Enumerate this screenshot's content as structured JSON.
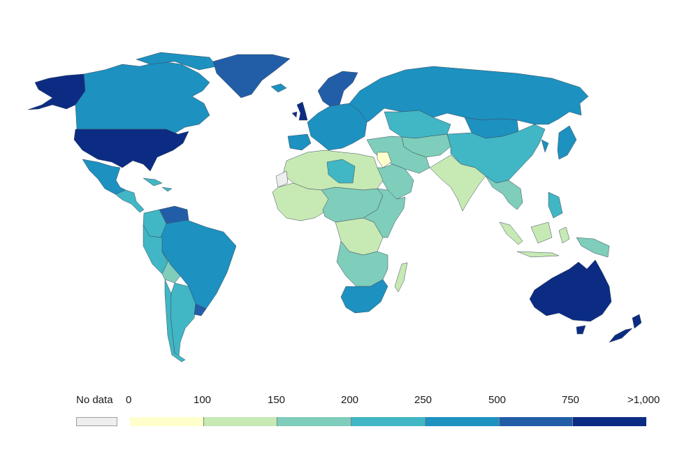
{
  "legend": {
    "no_data_label": "No data",
    "no_data_color": "#eeeeee",
    "ticks": [
      "0",
      "100",
      "150",
      "200",
      "250",
      "500",
      "750",
      ">1,000"
    ],
    "bins": [
      {
        "color": "#ffffcc"
      },
      {
        "color": "#c7e9b4"
      },
      {
        "color": "#7fcdbb"
      },
      {
        "color": "#41b6c4"
      },
      {
        "color": "#1d91c0"
      },
      {
        "color": "#225ea8"
      },
      {
        "color": "#0c2c84"
      }
    ]
  },
  "regions": [
    {
      "name": "alaska",
      "color": "#0c2c84"
    },
    {
      "name": "canada",
      "color": "#1d91c0"
    },
    {
      "name": "greenland",
      "color": "#225ea8"
    },
    {
      "name": "usa",
      "color": "#0c2c84"
    },
    {
      "name": "mexico",
      "color": "#1d91c0"
    },
    {
      "name": "central-america",
      "color": "#41b6c4"
    },
    {
      "name": "caribbean",
      "color": "#41b6c4"
    },
    {
      "name": "venezuela",
      "color": "#225ea8"
    },
    {
      "name": "colombia",
      "color": "#41b6c4"
    },
    {
      "name": "brazil",
      "color": "#1d91c0"
    },
    {
      "name": "peru",
      "color": "#41b6c4"
    },
    {
      "name": "bolivia",
      "color": "#7fcdbb"
    },
    {
      "name": "argentina",
      "color": "#41b6c4"
    },
    {
      "name": "chile",
      "color": "#41b6c4"
    },
    {
      "name": "uruguay",
      "color": "#225ea8"
    },
    {
      "name": "iceland",
      "color": "#1d91c0"
    },
    {
      "name": "scandinavia",
      "color": "#225ea8"
    },
    {
      "name": "uk",
      "color": "#0c2c84"
    },
    {
      "name": "europe",
      "color": "#1d91c0"
    },
    {
      "name": "iberia",
      "color": "#1d91c0"
    },
    {
      "name": "russia",
      "color": "#1d91c0"
    },
    {
      "name": "kazakhstan",
      "color": "#41b6c4"
    },
    {
      "name": "central-asia",
      "color": "#7fcdbb"
    },
    {
      "name": "mongolia",
      "color": "#1d91c0"
    },
    {
      "name": "china",
      "color": "#41b6c4"
    },
    {
      "name": "korea-japan",
      "color": "#1d91c0"
    },
    {
      "name": "middle-east",
      "color": "#7fcdbb"
    },
    {
      "name": "arabia",
      "color": "#7fcdbb"
    },
    {
      "name": "iraq-syria",
      "color": "#ffffcc"
    },
    {
      "name": "india",
      "color": "#c7e9b4"
    },
    {
      "name": "southeast-asia",
      "color": "#7fcdbb"
    },
    {
      "name": "indonesia",
      "color": "#c7e9b4"
    },
    {
      "name": "philippines",
      "color": "#41b6c4"
    },
    {
      "name": "papua",
      "color": "#7fcdbb"
    },
    {
      "name": "north-africa",
      "color": "#c7e9b4"
    },
    {
      "name": "libya",
      "color": "#41b6c4"
    },
    {
      "name": "west-sahara",
      "color": "#eeeeee"
    },
    {
      "name": "west-africa",
      "color": "#c7e9b4"
    },
    {
      "name": "central-africa",
      "color": "#7fcdbb"
    },
    {
      "name": "congo",
      "color": "#c7e9b4"
    },
    {
      "name": "east-africa",
      "color": "#7fcdbb"
    },
    {
      "name": "southern-africa",
      "color": "#7fcdbb"
    },
    {
      "name": "south-africa",
      "color": "#1d91c0"
    },
    {
      "name": "madagascar",
      "color": "#c7e9b4"
    },
    {
      "name": "australia",
      "color": "#0c2c84"
    },
    {
      "name": "new-zealand",
      "color": "#0c2c84"
    }
  ]
}
